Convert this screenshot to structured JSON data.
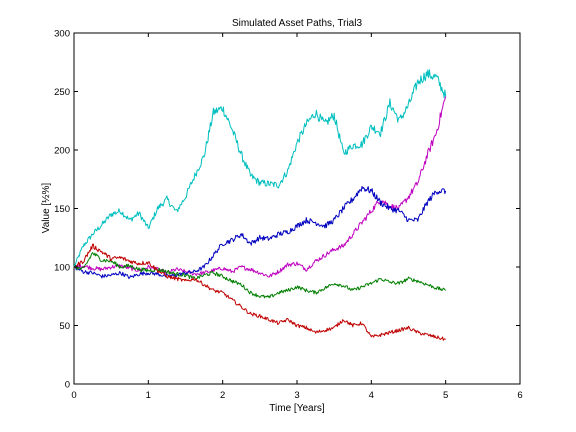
{
  "chart_data": {
    "type": "line",
    "title": "Simulated Asset Paths, Trial3",
    "xlabel": "Time [Years]",
    "ylabel": "Value [½%]",
    "xlim": [
      0,
      6
    ],
    "ylim": [
      0,
      300
    ],
    "xticks": [
      0,
      1,
      2,
      3,
      4,
      5,
      6
    ],
    "yticks": [
      0,
      50,
      100,
      150,
      200,
      250,
      300
    ],
    "xtick_labels": [
      "0",
      "1",
      "2",
      "3",
      "4",
      "5",
      "6"
    ],
    "ytick_labels": [
      "0",
      "50",
      "100",
      "150",
      "200",
      "250",
      "300"
    ],
    "grid": false,
    "legend": "none",
    "x": [
      0,
      0.125,
      0.25,
      0.375,
      0.5,
      0.625,
      0.75,
      0.875,
      1,
      1.125,
      1.25,
      1.375,
      1.5,
      1.625,
      1.75,
      1.875,
      2,
      2.125,
      2.25,
      2.375,
      2.5,
      2.625,
      2.75,
      2.875,
      3,
      3.125,
      3.25,
      3.375,
      3.5,
      3.625,
      3.75,
      3.875,
      4,
      4.125,
      4.25,
      4.375,
      4.5,
      4.625,
      4.75,
      4.875,
      5
    ],
    "series": [
      {
        "color": "#00bfbf",
        "values": [
          100,
          118,
          128,
          136,
          145,
          148,
          140,
          146,
          133,
          150,
          158,
          147,
          160,
          178,
          195,
          232,
          236,
          218,
          196,
          178,
          172,
          171,
          170,
          182,
          206,
          222,
          232,
          222,
          230,
          197,
          204,
          205,
          220,
          215,
          240,
          225,
          238,
          258,
          265,
          262,
          246
        ]
      },
      {
        "color": "#bf00bf",
        "values": [
          100,
          101,
          99,
          98,
          100,
          101,
          99,
          97,
          100,
          98,
          95,
          98,
          96,
          94,
          95,
          97,
          99,
          96,
          100,
          98,
          95,
          92,
          96,
          102,
          103,
          98,
          105,
          110,
          115,
          118,
          128,
          138,
          148,
          158,
          152,
          150,
          160,
          172,
          195,
          215,
          246
        ]
      },
      {
        "color": "#0000bf",
        "values": [
          100,
          96,
          95,
          92,
          93,
          95,
          91,
          94,
          95,
          94,
          92,
          93,
          95,
          96,
          100,
          110,
          120,
          123,
          128,
          120,
          125,
          124,
          128,
          130,
          135,
          140,
          138,
          135,
          140,
          150,
          158,
          168,
          165,
          155,
          150,
          148,
          140,
          140,
          155,
          165,
          165
        ]
      },
      {
        "color": "#007f00",
        "values": [
          100,
          98,
          112,
          106,
          105,
          100,
          101,
          98,
          97,
          98,
          96,
          94,
          93,
          90,
          93,
          95,
          92,
          88,
          85,
          78,
          75,
          74,
          78,
          80,
          83,
          80,
          78,
          82,
          86,
          84,
          80,
          83,
          86,
          90,
          87,
          86,
          90,
          88,
          85,
          82,
          80
        ]
      },
      {
        "color": "#bf0000",
        "values": [
          100,
          105,
          118,
          113,
          107,
          108,
          105,
          103,
          104,
          97,
          92,
          90,
          88,
          90,
          85,
          80,
          78,
          72,
          66,
          60,
          58,
          55,
          52,
          55,
          50,
          48,
          44,
          46,
          48,
          55,
          50,
          52,
          40,
          42,
          44,
          46,
          48,
          44,
          42,
          40,
          38
        ]
      }
    ]
  }
}
